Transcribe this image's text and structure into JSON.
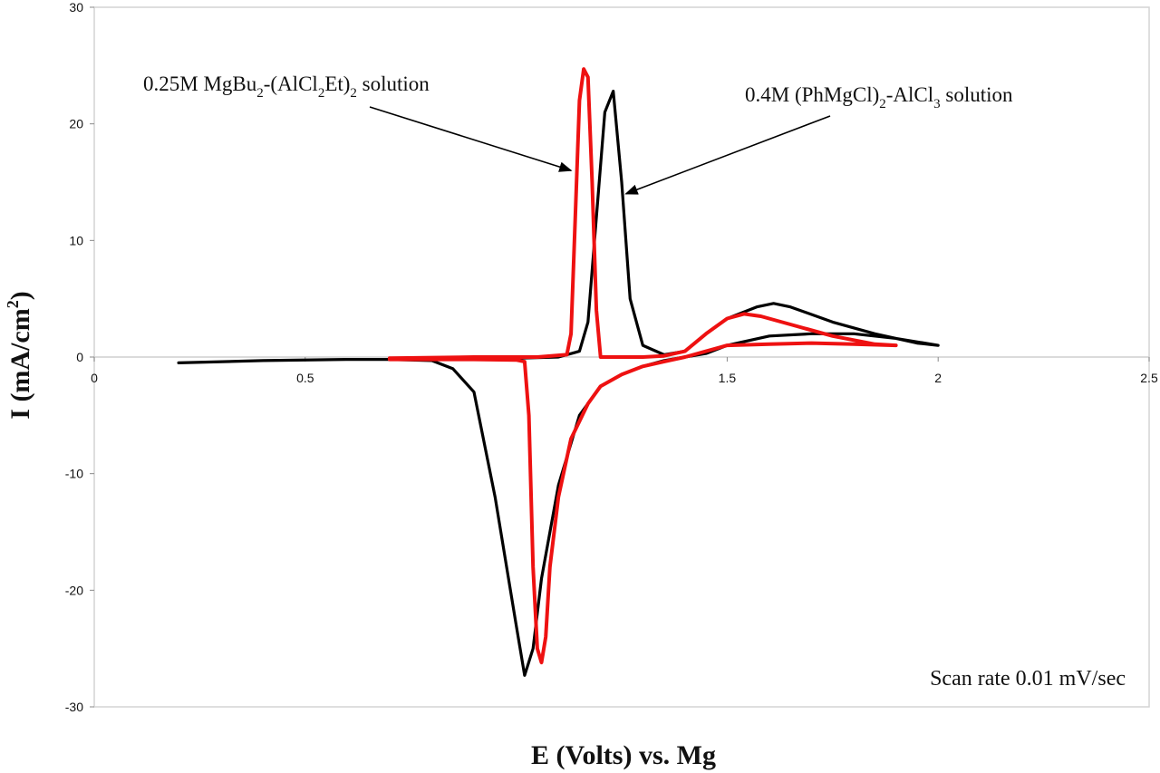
{
  "chart_data": {
    "type": "line",
    "xlabel": "E (Volts) vs. Mg",
    "ylabel_main": "I (mA/cm",
    "ylabel_sup": "2",
    "ylabel_close": ")",
    "xlim": [
      0,
      2.5
    ],
    "ylim": [
      -30,
      30
    ],
    "x_ticks": [
      0,
      0.5,
      1,
      1.5,
      2,
      2.5
    ],
    "x_tick_labels": [
      "0",
      "0.5",
      "",
      "1.5",
      "2",
      "2.5"
    ],
    "y_ticks": [
      -30,
      -20,
      -10,
      0,
      10,
      20,
      30
    ],
    "y_tick_labels": [
      "-30",
      "-20",
      "-10",
      "0",
      "10",
      "20",
      "30"
    ],
    "grid": false,
    "annotations": [
      {
        "id": "red",
        "parts": [
          {
            "t": "0.25M MgBu",
            "s": "normal"
          },
          {
            "t": "2",
            "s": "sub"
          },
          {
            "t": "-(AlCl",
            "s": "normal"
          },
          {
            "t": "2",
            "s": "sub"
          },
          {
            "t": "Et)",
            "s": "normal"
          },
          {
            "t": "2",
            "s": "sub"
          },
          {
            "t": " solution",
            "s": "normal"
          }
        ],
        "arrow_to": [
          1.13,
          16
        ]
      },
      {
        "id": "black",
        "parts": [
          {
            "t": "0.4M (PhMgCl)",
            "s": "normal"
          },
          {
            "t": "2",
            "s": "sub"
          },
          {
            "t": "-AlCl",
            "s": "normal"
          },
          {
            "t": "3",
            "s": "sub"
          },
          {
            "t": " solution",
            "s": "normal"
          }
        ],
        "arrow_to": [
          1.26,
          14
        ]
      }
    ],
    "note": "Scan rate 0.01 mV/sec",
    "series": [
      {
        "color": "#000000",
        "points": [
          [
            0.2,
            -0.5
          ],
          [
            0.4,
            -0.3
          ],
          [
            0.6,
            -0.2
          ],
          [
            0.7,
            -0.2
          ],
          [
            0.8,
            -0.3
          ],
          [
            0.85,
            -1
          ],
          [
            0.9,
            -3
          ],
          [
            0.95,
            -12
          ],
          [
            1.0,
            -23
          ],
          [
            1.02,
            -27.3
          ],
          [
            1.04,
            -25
          ],
          [
            1.06,
            -19
          ],
          [
            1.1,
            -11
          ],
          [
            1.15,
            -5
          ],
          [
            1.2,
            -2.5
          ],
          [
            1.25,
            -1.5
          ],
          [
            1.3,
            -0.8
          ],
          [
            1.35,
            -0.3
          ],
          [
            1.4,
            0
          ],
          [
            1.45,
            0.3
          ],
          [
            1.5,
            1
          ],
          [
            1.6,
            1.8
          ],
          [
            1.7,
            2
          ],
          [
            1.8,
            2
          ],
          [
            1.9,
            1.6
          ],
          [
            2.0,
            1
          ],
          [
            1.95,
            1.2
          ],
          [
            1.85,
            2
          ],
          [
            1.75,
            3
          ],
          [
            1.65,
            4.3
          ],
          [
            1.61,
            4.6
          ],
          [
            1.57,
            4.3
          ],
          [
            1.5,
            3.3
          ],
          [
            1.45,
            2
          ],
          [
            1.4,
            0.5
          ],
          [
            1.35,
            0.2
          ],
          [
            1.3,
            1
          ],
          [
            1.27,
            5
          ],
          [
            1.25,
            15
          ],
          [
            1.23,
            22.8
          ],
          [
            1.21,
            21
          ],
          [
            1.19,
            12
          ],
          [
            1.17,
            3
          ],
          [
            1.15,
            0.5
          ],
          [
            1.1,
            0
          ],
          [
            1.0,
            -0.1
          ],
          [
            0.8,
            -0.1
          ],
          [
            0.7,
            -0.1
          ]
        ]
      },
      {
        "color": "#ee1111",
        "points": [
          [
            0.7,
            -0.2
          ],
          [
            0.9,
            -0.2
          ],
          [
            1.0,
            -0.25
          ],
          [
            1.02,
            -0.4
          ],
          [
            1.03,
            -5
          ],
          [
            1.04,
            -18
          ],
          [
            1.05,
            -25
          ],
          [
            1.06,
            -26.2
          ],
          [
            1.07,
            -24
          ],
          [
            1.08,
            -18
          ],
          [
            1.1,
            -12
          ],
          [
            1.13,
            -7
          ],
          [
            1.17,
            -4
          ],
          [
            1.2,
            -2.5
          ],
          [
            1.25,
            -1.5
          ],
          [
            1.3,
            -0.8
          ],
          [
            1.35,
            -0.4
          ],
          [
            1.4,
            0
          ],
          [
            1.45,
            0.5
          ],
          [
            1.5,
            1
          ],
          [
            1.6,
            1.1
          ],
          [
            1.7,
            1.2
          ],
          [
            1.8,
            1.1
          ],
          [
            1.9,
            1
          ],
          [
            1.85,
            1.1
          ],
          [
            1.75,
            1.8
          ],
          [
            1.65,
            2.8
          ],
          [
            1.58,
            3.5
          ],
          [
            1.54,
            3.7
          ],
          [
            1.5,
            3.3
          ],
          [
            1.45,
            2
          ],
          [
            1.4,
            0.5
          ],
          [
            1.35,
            0.1
          ],
          [
            1.3,
            0
          ],
          [
            1.2,
            0
          ],
          [
            1.19,
            4
          ],
          [
            1.18,
            15
          ],
          [
            1.17,
            24
          ],
          [
            1.16,
            24.7
          ],
          [
            1.15,
            22
          ],
          [
            1.14,
            12
          ],
          [
            1.13,
            2
          ],
          [
            1.12,
            0.2
          ],
          [
            1.05,
            0
          ],
          [
            0.9,
            0
          ],
          [
            0.7,
            -0.1
          ]
        ]
      }
    ]
  }
}
